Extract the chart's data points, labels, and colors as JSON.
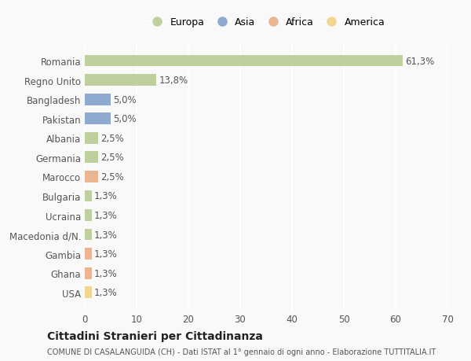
{
  "categories": [
    "Romania",
    "Regno Unito",
    "Bangladesh",
    "Pakistan",
    "Albania",
    "Germania",
    "Marocco",
    "Bulgaria",
    "Ucraina",
    "Macedonia d/N.",
    "Gambia",
    "Ghana",
    "USA"
  ],
  "values": [
    61.3,
    13.8,
    5.0,
    5.0,
    2.5,
    2.5,
    2.5,
    1.3,
    1.3,
    1.3,
    1.3,
    1.3,
    1.3
  ],
  "labels": [
    "61,3%",
    "13,8%",
    "5,0%",
    "5,0%",
    "2,5%",
    "2,5%",
    "2,5%",
    "1,3%",
    "1,3%",
    "1,3%",
    "1,3%",
    "1,3%",
    "1,3%"
  ],
  "continent": [
    "Europa",
    "Europa",
    "Asia",
    "Asia",
    "Europa",
    "Europa",
    "Africa",
    "Europa",
    "Europa",
    "Europa",
    "Africa",
    "Africa",
    "America"
  ],
  "continent_colors": {
    "Europa": "#b5c98e",
    "Asia": "#7b9dc7",
    "Africa": "#e8a97e",
    "America": "#f0d080"
  },
  "legend_order": [
    "Europa",
    "Asia",
    "Africa",
    "America"
  ],
  "legend_colors": [
    "#b5c98e",
    "#7b9dc7",
    "#e8a97e",
    "#f0d080"
  ],
  "xlim": [
    0,
    70
  ],
  "xticks": [
    0,
    10,
    20,
    30,
    40,
    50,
    60,
    70
  ],
  "title": "Cittadini Stranieri per Cittadinanza",
  "subtitle": "COMUNE DI CASALANGUIDA (CH) - Dati ISTAT al 1° gennaio di ogni anno - Elaborazione TUTTITALIA.IT",
  "bg_color": "#f9f9f9",
  "grid_color": "#ffffff",
  "bar_height": 0.6,
  "label_fontsize": 8.5,
  "tick_fontsize": 8.5
}
